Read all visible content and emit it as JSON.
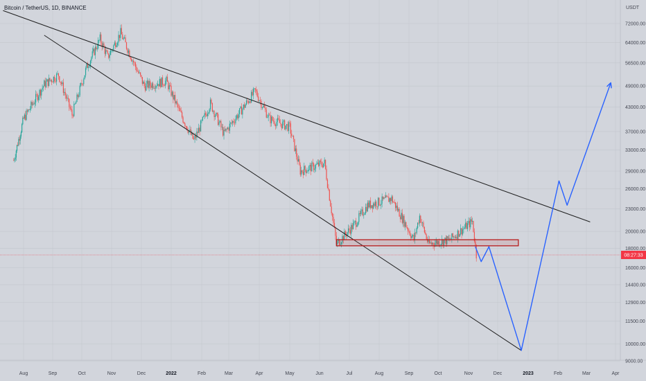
{
  "header": {
    "title": "Bitcoin / TetherUS, 1D, BINANCE",
    "currency": "USDT"
  },
  "colors": {
    "background": "#d2d5dc",
    "up_candle": "#26a69a",
    "down_candle": "#ef5350",
    "trendline": "#1f1f1f",
    "projection": "#2962ff",
    "support_box": "#b71c1c",
    "price_line": "#f23645",
    "grid": "#c3c6cd"
  },
  "chart_data": {
    "type": "candlestick",
    "title": "Bitcoin / TetherUS, 1D, BINANCE",
    "ylabel": "USDT",
    "y_scale": "log",
    "ylim": [
      9000,
      78000
    ],
    "x_ticks": [
      "Aug",
      "Sep",
      "Oct",
      "Nov",
      "Dec",
      "2022",
      "Feb",
      "Mar",
      "Apr",
      "May",
      "Jun",
      "Jul",
      "Aug",
      "Sep",
      "Oct",
      "Nov",
      "Dec",
      "2023",
      "Feb",
      "Mar",
      "Apr"
    ],
    "y_ticks": [
      72000,
      64000,
      56500,
      49000,
      43000,
      37000,
      33000,
      29000,
      26000,
      23000,
      20000,
      18000,
      16000,
      14400,
      12900,
      11500,
      10000,
      9000
    ],
    "y_tick_labels": [
      "72000.00",
      "64000.00",
      "56500.00",
      "49000.00",
      "43000.00",
      "37000.00",
      "33000.00",
      "29000.00",
      "26000.00",
      "23000.00",
      "20000.00",
      "18000.00",
      "16000.00",
      "14400.00",
      "12900.00",
      "11500.00",
      "10000.00",
      "9000.00"
    ],
    "current_price_label": "08:27:33",
    "current_price": 17300,
    "price_anchors": [
      {
        "date": "2021-07-20",
        "close": 31000
      },
      {
        "date": "2021-08-01",
        "close": 40000
      },
      {
        "date": "2021-08-23",
        "close": 49500
      },
      {
        "date": "2021-09-07",
        "close": 52500
      },
      {
        "date": "2021-09-21",
        "close": 41000
      },
      {
        "date": "2021-10-06",
        "close": 55000
      },
      {
        "date": "2021-10-20",
        "close": 65500
      },
      {
        "date": "2021-10-28",
        "close": 58500
      },
      {
        "date": "2021-11-10",
        "close": 68000
      },
      {
        "date": "2021-11-26",
        "close": 54500
      },
      {
        "date": "2021-12-04",
        "close": 49000
      },
      {
        "date": "2021-12-27",
        "close": 50500
      },
      {
        "date": "2022-01-10",
        "close": 41500
      },
      {
        "date": "2022-01-24",
        "close": 35000
      },
      {
        "date": "2022-02-10",
        "close": 44000
      },
      {
        "date": "2022-02-24",
        "close": 36500
      },
      {
        "date": "2022-03-28",
        "close": 47500
      },
      {
        "date": "2022-04-11",
        "close": 40000
      },
      {
        "date": "2022-05-01",
        "close": 38000
      },
      {
        "date": "2022-05-12",
        "close": 29000
      },
      {
        "date": "2022-06-06",
        "close": 30500
      },
      {
        "date": "2022-06-18",
        "close": 18500
      },
      {
        "date": "2022-07-07",
        "close": 21000
      },
      {
        "date": "2022-07-20",
        "close": 23500
      },
      {
        "date": "2022-08-14",
        "close": 24500
      },
      {
        "date": "2022-09-06",
        "close": 19000
      },
      {
        "date": "2022-09-12",
        "close": 22000
      },
      {
        "date": "2022-09-21",
        "close": 18500
      },
      {
        "date": "2022-10-13",
        "close": 19000
      },
      {
        "date": "2022-11-05",
        "close": 21300
      },
      {
        "date": "2022-11-09",
        "close": 17300
      }
    ],
    "annotations": [
      {
        "type": "trendline",
        "name": "upper-resistance",
        "points": [
          {
            "date": "2021-07-07",
            "price": 78000
          },
          {
            "date": "2023-03-05",
            "price": 21200
          }
        ]
      },
      {
        "type": "trendline",
        "name": "lower-support",
        "points": [
          {
            "date": "2021-08-23",
            "price": 67000
          },
          {
            "date": "2022-12-25",
            "price": 9600
          }
        ]
      },
      {
        "type": "rectangle",
        "name": "support-zone",
        "points": [
          {
            "date": "2022-06-18",
            "price": 19000
          },
          {
            "date": "2022-12-22",
            "price": 18300
          }
        ]
      },
      {
        "type": "horizontal-line",
        "name": "current-price-line",
        "price": 17300
      },
      {
        "type": "projection-path",
        "name": "forecast-path",
        "points": [
          {
            "date": "2022-11-08",
            "price": 18200
          },
          {
            "date": "2022-11-14",
            "price": 16600
          },
          {
            "date": "2022-11-22",
            "price": 18200
          },
          {
            "date": "2022-12-25",
            "price": 9600
          },
          {
            "date": "2023-02-02",
            "price": 27300
          },
          {
            "date": "2023-02-10",
            "price": 23500
          },
          {
            "date": "2023-03-27",
            "price": 50000
          }
        ]
      }
    ],
    "grid": true,
    "legend": "none"
  }
}
